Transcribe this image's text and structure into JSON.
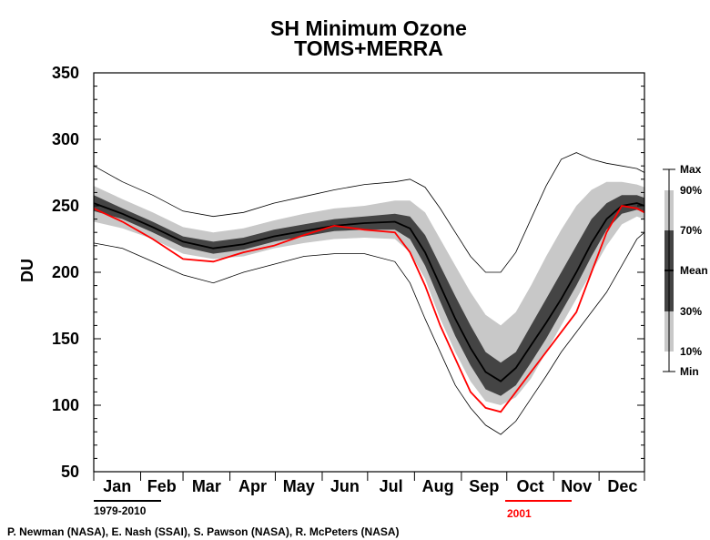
{
  "chart_data": {
    "type": "area",
    "title": "SH Minimum Ozone",
    "subtitle": "TOMS+MERRA",
    "ylabel": "DU",
    "xlabel": "",
    "ylim": [
      50,
      350
    ],
    "yticks": [
      50,
      100,
      150,
      200,
      250,
      300,
      350
    ],
    "months": [
      "Jan",
      "Feb",
      "Mar",
      "Apr",
      "May",
      "Jun",
      "Jul",
      "Aug",
      "Sep",
      "Oct",
      "Nov",
      "Dec"
    ],
    "grid": false,
    "legend_position": "right",
    "legend_labels": [
      "Max",
      "90%",
      "70%",
      "Mean",
      "30%",
      "10%",
      "Min"
    ],
    "period_climatology": "1979-2010",
    "period_highlight": "2001",
    "credits": "P. Newman (NASA), E. Nash (SSAI), S. Pawson (NASA), R. McPeters (NASA)",
    "colors": {
      "band_outer": "#c8c8c8",
      "band_inner": "#444444",
      "mean": "#000000",
      "highlight": "#ff0000"
    },
    "x_unit": "day of year",
    "series": [
      {
        "name": "Mean",
        "x": [
          1,
          20,
          40,
          60,
          80,
          100,
          120,
          140,
          160,
          180,
          200,
          210,
          220,
          230,
          240,
          250,
          260,
          270,
          280,
          290,
          300,
          310,
          320,
          330,
          340,
          350,
          360,
          365
        ],
        "values": [
          252,
          244,
          234,
          223,
          218,
          221,
          227,
          231,
          235,
          237,
          238,
          233,
          215,
          190,
          165,
          143,
          125,
          118,
          128,
          145,
          162,
          180,
          200,
          222,
          240,
          250,
          252,
          250
        ]
      },
      {
        "name": "10%",
        "x": [
          1,
          20,
          40,
          60,
          80,
          100,
          120,
          140,
          160,
          180,
          200,
          210,
          220,
          230,
          240,
          250,
          260,
          270,
          280,
          290,
          300,
          310,
          320,
          330,
          340,
          350,
          360,
          365
        ],
        "values": [
          238,
          233,
          225,
          214,
          210,
          212,
          218,
          222,
          225,
          226,
          225,
          215,
          195,
          165,
          140,
          118,
          103,
          100,
          106,
          120,
          140,
          160,
          180,
          200,
          220,
          236,
          242,
          240
        ]
      },
      {
        "name": "30%",
        "x": [
          1,
          20,
          40,
          60,
          80,
          100,
          120,
          140,
          160,
          180,
          200,
          210,
          220,
          230,
          240,
          250,
          260,
          270,
          280,
          290,
          300,
          310,
          320,
          330,
          340,
          350,
          360,
          365
        ],
        "values": [
          246,
          240,
          230,
          219,
          214,
          217,
          223,
          227,
          231,
          232,
          232,
          225,
          205,
          178,
          152,
          130,
          112,
          107,
          115,
          132,
          150,
          170,
          190,
          212,
          232,
          244,
          247,
          245
        ]
      },
      {
        "name": "70%",
        "x": [
          1,
          20,
          40,
          60,
          80,
          100,
          120,
          140,
          160,
          180,
          200,
          210,
          220,
          230,
          240,
          250,
          260,
          270,
          280,
          290,
          300,
          310,
          320,
          330,
          340,
          350,
          360,
          365
        ],
        "values": [
          258,
          248,
          238,
          227,
          223,
          226,
          232,
          236,
          240,
          242,
          244,
          242,
          228,
          205,
          182,
          160,
          140,
          132,
          140,
          160,
          180,
          200,
          220,
          240,
          252,
          258,
          258,
          256
        ]
      },
      {
        "name": "90%",
        "x": [
          1,
          20,
          40,
          60,
          80,
          100,
          120,
          140,
          160,
          180,
          200,
          210,
          220,
          230,
          240,
          250,
          260,
          270,
          280,
          290,
          300,
          310,
          320,
          330,
          340,
          350,
          360,
          365
        ],
        "values": [
          265,
          255,
          245,
          234,
          230,
          233,
          239,
          244,
          248,
          250,
          254,
          254,
          245,
          225,
          205,
          185,
          168,
          160,
          170,
          190,
          212,
          232,
          250,
          262,
          268,
          268,
          266,
          264
        ]
      },
      {
        "name": "Min",
        "x": [
          1,
          20,
          40,
          60,
          80,
          100,
          120,
          140,
          160,
          180,
          200,
          210,
          220,
          230,
          240,
          250,
          260,
          270,
          280,
          290,
          300,
          310,
          320,
          330,
          340,
          350,
          360,
          365
        ],
        "values": [
          222,
          218,
          208,
          198,
          192,
          200,
          206,
          212,
          214,
          214,
          208,
          192,
          165,
          140,
          115,
          98,
          85,
          78,
          88,
          105,
          122,
          140,
          155,
          170,
          185,
          205,
          225,
          230
        ]
      },
      {
        "name": "Max",
        "x": [
          1,
          20,
          40,
          60,
          80,
          100,
          120,
          140,
          160,
          180,
          200,
          210,
          220,
          230,
          240,
          250,
          260,
          270,
          280,
          290,
          300,
          310,
          320,
          330,
          340,
          350,
          360,
          365
        ],
        "values": [
          280,
          268,
          258,
          246,
          242,
          245,
          252,
          257,
          262,
          266,
          268,
          270,
          264,
          248,
          230,
          212,
          200,
          200,
          215,
          240,
          265,
          285,
          290,
          285,
          282,
          280,
          278,
          275
        ]
      },
      {
        "name": "2001",
        "x": [
          1,
          20,
          40,
          60,
          80,
          100,
          120,
          140,
          160,
          180,
          200,
          210,
          220,
          230,
          240,
          250,
          260,
          270,
          280,
          290,
          300,
          310,
          320,
          330,
          340,
          350,
          360,
          365
        ],
        "values": [
          248,
          238,
          225,
          210,
          208,
          215,
          220,
          228,
          235,
          232,
          230,
          215,
          190,
          160,
          135,
          110,
          98,
          95,
          110,
          125,
          140,
          155,
          170,
          200,
          230,
          250,
          248,
          245
        ]
      }
    ]
  }
}
